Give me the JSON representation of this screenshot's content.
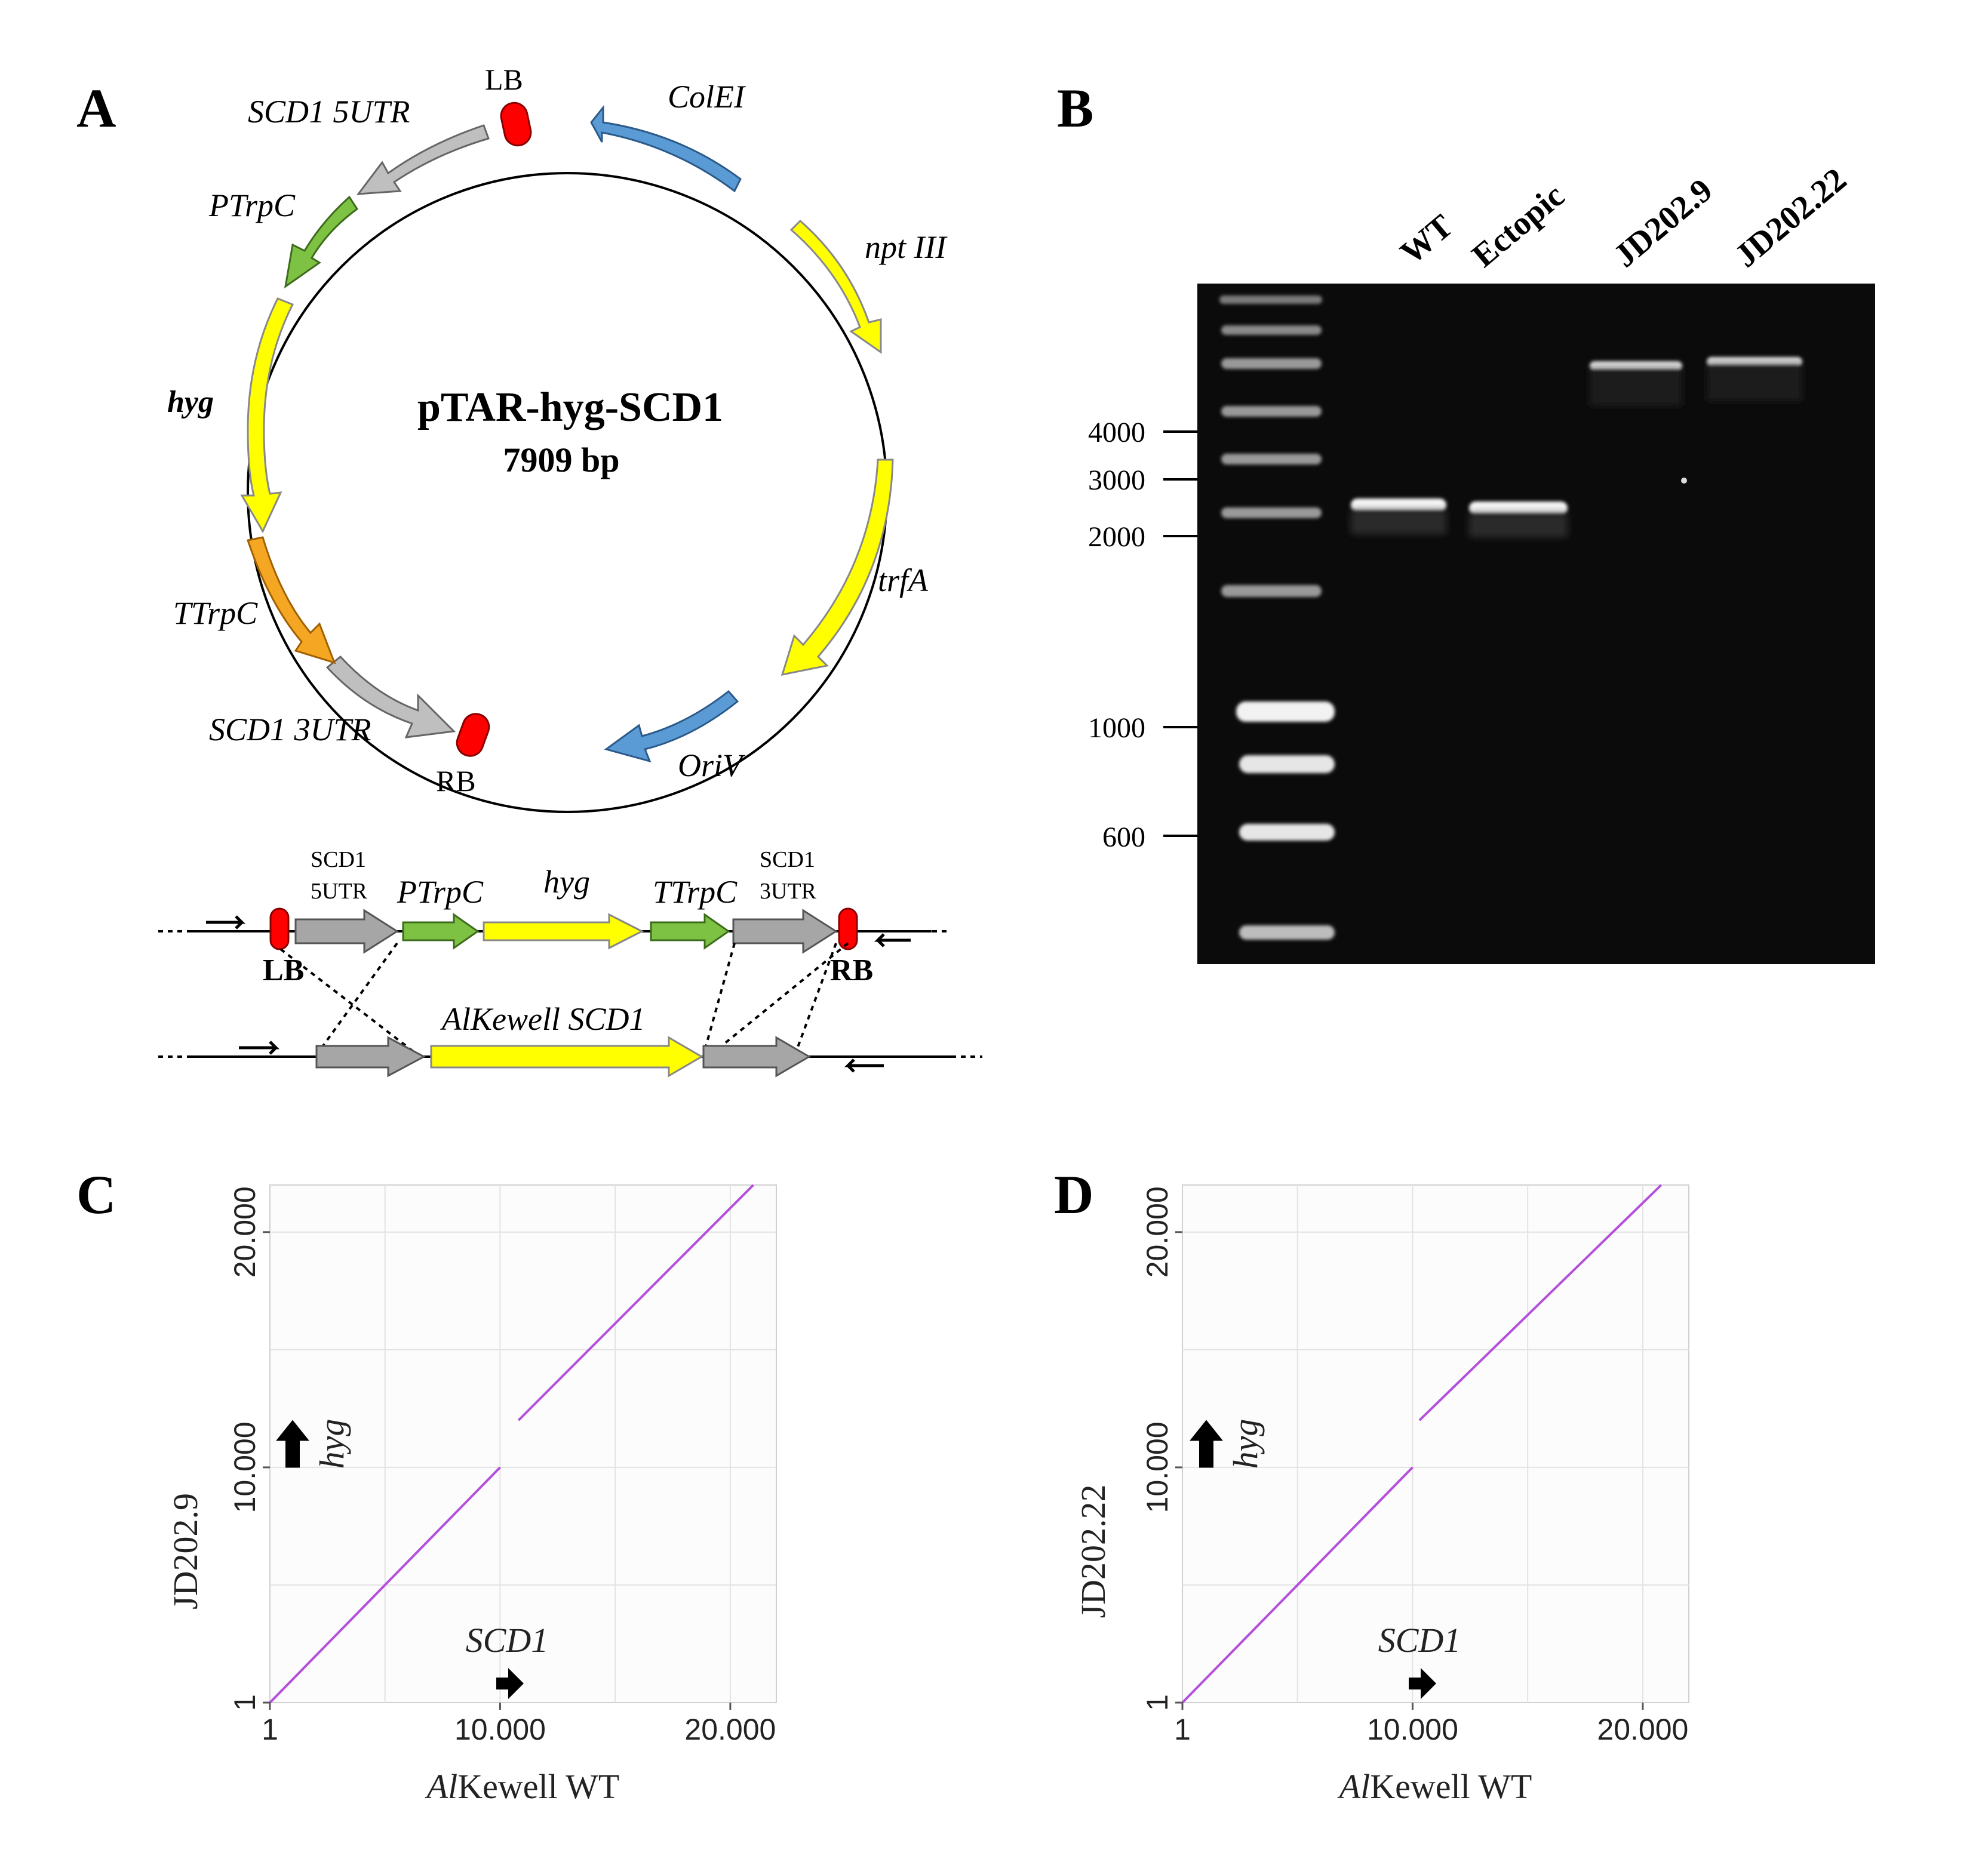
{
  "panels": {
    "A": "A",
    "B": "B",
    "C": "C",
    "D": "D"
  },
  "plasmid": {
    "name": "pTAR-hyg-SCD1",
    "size": "7909 bp",
    "features": {
      "LB": "LB",
      "ColEI": "ColEI",
      "nptIII": "npt III",
      "trfA": "trfA",
      "OriV": "OriV",
      "RB": "RB",
      "SCD1_3UTR": "SCD1 3UTR",
      "TTrpC": "TTrpC",
      "hyg": "hyg",
      "PTrpC": "PTrpC",
      "SCD1_5UTR": "SCD1 5UTR"
    },
    "colors": {
      "border": "#ff0000",
      "ori": "#5b9bd5",
      "yellow": "#ffff00",
      "green": "#7dc242",
      "orange": "#f5a623",
      "grey": "#bfbfbf"
    }
  },
  "construct": {
    "scd1_top_a": "SCD1",
    "utr5": "5UTR",
    "ptrpc": "PTrpC",
    "hyg": "hyg",
    "ttrpc": "TTrpC",
    "scd1_top_b": "SCD1",
    "utr3": "3UTR",
    "lb": "LB",
    "rb": "RB",
    "genome": "AlKewell SCD1"
  },
  "gel": {
    "lanes": [
      "WT",
      "Ectopic",
      "JD202.9",
      "JD202.22"
    ],
    "ladder": [
      "4000",
      "3000",
      "2000",
      "1000",
      "600"
    ]
  },
  "dotplots": [
    {
      "ylabel": "JD202.9",
      "xlabel_italic": "Al",
      "xlabel_rest": "Kewell WT",
      "xticks": [
        "1",
        "10.000",
        "20.000"
      ],
      "yticks": [
        "1",
        "10.000",
        "20.000"
      ],
      "gene_x": "SCD1",
      "gene_y": "hyg",
      "line_color": "#b44fdc",
      "chart_data": {
        "type": "line",
        "segments": [
          {
            "x": [
              1,
              10000
            ],
            "y": [
              1,
              10000
            ]
          },
          {
            "x": [
              10800,
              21000
            ],
            "y": [
              12000,
              22000
            ]
          }
        ]
      }
    },
    {
      "ylabel": "JD202.22",
      "xlabel_italic": "Al",
      "xlabel_rest": "Kewell WT",
      "xticks": [
        "1",
        "10.000",
        "20.000"
      ],
      "yticks": [
        "1",
        "10.000",
        "20.000"
      ],
      "gene_x": "SCD1",
      "gene_y": "hyg",
      "line_color": "#b44fdc",
      "chart_data": {
        "type": "line",
        "segments": [
          {
            "x": [
              1,
              10000
            ],
            "y": [
              1,
              10000
            ]
          },
          {
            "x": [
              10300,
              20800
            ],
            "y": [
              12000,
              22000
            ]
          }
        ]
      }
    }
  ]
}
